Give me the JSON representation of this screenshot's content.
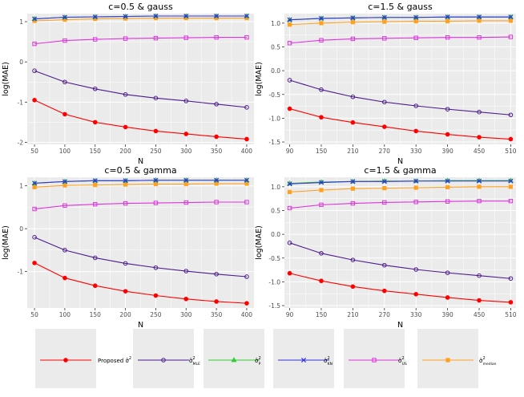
{
  "colors": {
    "proposed": "#ff0000",
    "mle": "#4b1a8c",
    "p": "#33cc33",
    "kn": "#3333dd",
    "us": "#dd33dd",
    "median": "#ffa020",
    "panel_bg": "#ebebeb",
    "grid": "#ffffff"
  },
  "legend": {
    "items": [
      {
        "key": "proposed",
        "label": "Proposed σ̂²",
        "marker": "circle"
      },
      {
        "key": "mle",
        "label": "σ̂²MLE",
        "marker": "open-circle"
      },
      {
        "key": "p",
        "label": "σ̂²P",
        "marker": "triangle"
      },
      {
        "key": "kn",
        "label": "σ̂²KN",
        "marker": "cross"
      },
      {
        "key": "us",
        "label": "σ̂²US",
        "marker": "open-square"
      },
      {
        "key": "median",
        "label": "σ̂²median",
        "marker": "square"
      }
    ]
  },
  "chart_data": [
    {
      "type": "line",
      "title": "c=0.5 & gauss",
      "xlabel": "N",
      "ylabel": "log(MAE)",
      "x": [
        50,
        100,
        150,
        200,
        250,
        300,
        350,
        400
      ],
      "xticks": [
        50,
        100,
        150,
        200,
        250,
        300,
        350,
        400
      ],
      "xlim": [
        38,
        412
      ],
      "yticks": [
        -2,
        -1,
        0,
        1
      ],
      "ylim": [
        -2.05,
        1.2
      ],
      "series": [
        {
          "name": "Proposed",
          "key": "proposed",
          "values": [
            -0.95,
            -1.3,
            -1.5,
            -1.62,
            -1.72,
            -1.79,
            -1.86,
            -1.92
          ]
        },
        {
          "name": "MLE",
          "key": "mle",
          "values": [
            -0.22,
            -0.5,
            -0.67,
            -0.81,
            -0.9,
            -0.97,
            -1.05,
            -1.13
          ]
        },
        {
          "name": "US",
          "key": "us",
          "values": [
            0.45,
            0.53,
            0.56,
            0.58,
            0.59,
            0.6,
            0.61,
            0.61
          ]
        },
        {
          "name": "median",
          "key": "median",
          "values": [
            1.02,
            1.05,
            1.07,
            1.08,
            1.09,
            1.09,
            1.09,
            1.09
          ]
        },
        {
          "name": "P",
          "key": "p",
          "values": [
            1.07,
            1.11,
            1.12,
            1.13,
            1.14,
            1.14,
            1.14,
            1.14
          ]
        },
        {
          "name": "KN",
          "key": "kn",
          "values": [
            1.07,
            1.11,
            1.12,
            1.13,
            1.14,
            1.14,
            1.14,
            1.14
          ]
        }
      ]
    },
    {
      "type": "line",
      "title": "c=1.5 & gauss",
      "xlabel": "N",
      "ylabel": "log(MAE)",
      "x": [
        90,
        150,
        210,
        270,
        330,
        390,
        450,
        510
      ],
      "xticks": [
        90,
        150,
        210,
        270,
        330,
        390,
        450,
        510
      ],
      "xlim": [
        80,
        520
      ],
      "yticks": [
        -1.5,
        -1.0,
        -0.5,
        0.0,
        0.5,
        1.0
      ],
      "ylim": [
        -1.55,
        1.2
      ],
      "series": [
        {
          "name": "Proposed",
          "key": "proposed",
          "values": [
            -0.8,
            -0.98,
            -1.09,
            -1.18,
            -1.27,
            -1.34,
            -1.4,
            -1.44
          ]
        },
        {
          "name": "MLE",
          "key": "mle",
          "values": [
            -0.2,
            -0.4,
            -0.55,
            -0.66,
            -0.74,
            -0.81,
            -0.87,
            -0.93
          ]
        },
        {
          "name": "US",
          "key": "us",
          "values": [
            0.58,
            0.64,
            0.67,
            0.68,
            0.69,
            0.7,
            0.7,
            0.71
          ]
        },
        {
          "name": "median",
          "key": "median",
          "values": [
            0.97,
            1.0,
            1.02,
            1.03,
            1.04,
            1.04,
            1.05,
            1.05
          ]
        },
        {
          "name": "P",
          "key": "p",
          "values": [
            1.07,
            1.1,
            1.11,
            1.12,
            1.12,
            1.13,
            1.13,
            1.13
          ]
        },
        {
          "name": "KN",
          "key": "kn",
          "values": [
            1.07,
            1.1,
            1.11,
            1.12,
            1.12,
            1.13,
            1.13,
            1.13
          ]
        }
      ]
    },
    {
      "type": "line",
      "title": "c=0.5 & gamma",
      "xlabel": "N",
      "ylabel": "log(MAE)",
      "x": [
        50,
        100,
        150,
        200,
        250,
        300,
        350,
        400
      ],
      "xticks": [
        50,
        100,
        150,
        200,
        250,
        300,
        350,
        400
      ],
      "xlim": [
        38,
        412
      ],
      "yticks": [
        -1,
        0,
        1
      ],
      "ylim": [
        -1.85,
        1.2
      ],
      "series": [
        {
          "name": "Proposed",
          "key": "proposed",
          "values": [
            -0.8,
            -1.15,
            -1.33,
            -1.46,
            -1.56,
            -1.64,
            -1.7,
            -1.74
          ]
        },
        {
          "name": "MLE",
          "key": "mle",
          "values": [
            -0.2,
            -0.5,
            -0.68,
            -0.81,
            -0.91,
            -0.99,
            -1.06,
            -1.12
          ]
        },
        {
          "name": "US",
          "key": "us",
          "values": [
            0.46,
            0.54,
            0.57,
            0.59,
            0.6,
            0.61,
            0.62,
            0.62
          ]
        },
        {
          "name": "median",
          "key": "median",
          "values": [
            0.97,
            1.01,
            1.02,
            1.03,
            1.04,
            1.04,
            1.05,
            1.05
          ]
        },
        {
          "name": "P",
          "key": "p",
          "values": [
            1.06,
            1.1,
            1.12,
            1.12,
            1.13,
            1.13,
            1.13,
            1.13
          ]
        },
        {
          "name": "KN",
          "key": "kn",
          "values": [
            1.06,
            1.1,
            1.12,
            1.12,
            1.13,
            1.13,
            1.13,
            1.13
          ]
        }
      ]
    },
    {
      "type": "line",
      "title": "c=1.5 & gamma",
      "xlabel": "N",
      "ylabel": "log(MAE)",
      "x": [
        90,
        150,
        210,
        270,
        330,
        390,
        450,
        510
      ],
      "xticks": [
        90,
        150,
        210,
        270,
        330,
        390,
        450,
        510
      ],
      "xlim": [
        80,
        520
      ],
      "yticks": [
        -1.5,
        -1.0,
        -0.5,
        0.0,
        0.5,
        1.0
      ],
      "ylim": [
        -1.55,
        1.2
      ],
      "series": [
        {
          "name": "Proposed",
          "key": "proposed",
          "values": [
            -0.82,
            -0.98,
            -1.1,
            -1.19,
            -1.26,
            -1.33,
            -1.39,
            -1.43
          ]
        },
        {
          "name": "MLE",
          "key": "mle",
          "values": [
            -0.18,
            -0.4,
            -0.54,
            -0.65,
            -0.74,
            -0.81,
            -0.87,
            -0.93
          ]
        },
        {
          "name": "US",
          "key": "us",
          "values": [
            0.55,
            0.62,
            0.65,
            0.67,
            0.68,
            0.69,
            0.7,
            0.7
          ]
        },
        {
          "name": "median",
          "key": "median",
          "values": [
            0.89,
            0.93,
            0.96,
            0.97,
            0.98,
            0.99,
            1.0,
            1.0
          ]
        },
        {
          "name": "P",
          "key": "p",
          "values": [
            1.07,
            1.1,
            1.11,
            1.12,
            1.12,
            1.13,
            1.13,
            1.13
          ]
        },
        {
          "name": "KN",
          "key": "kn",
          "values": [
            1.06,
            1.09,
            1.11,
            1.11,
            1.12,
            1.12,
            1.12,
            1.12
          ]
        }
      ]
    }
  ]
}
